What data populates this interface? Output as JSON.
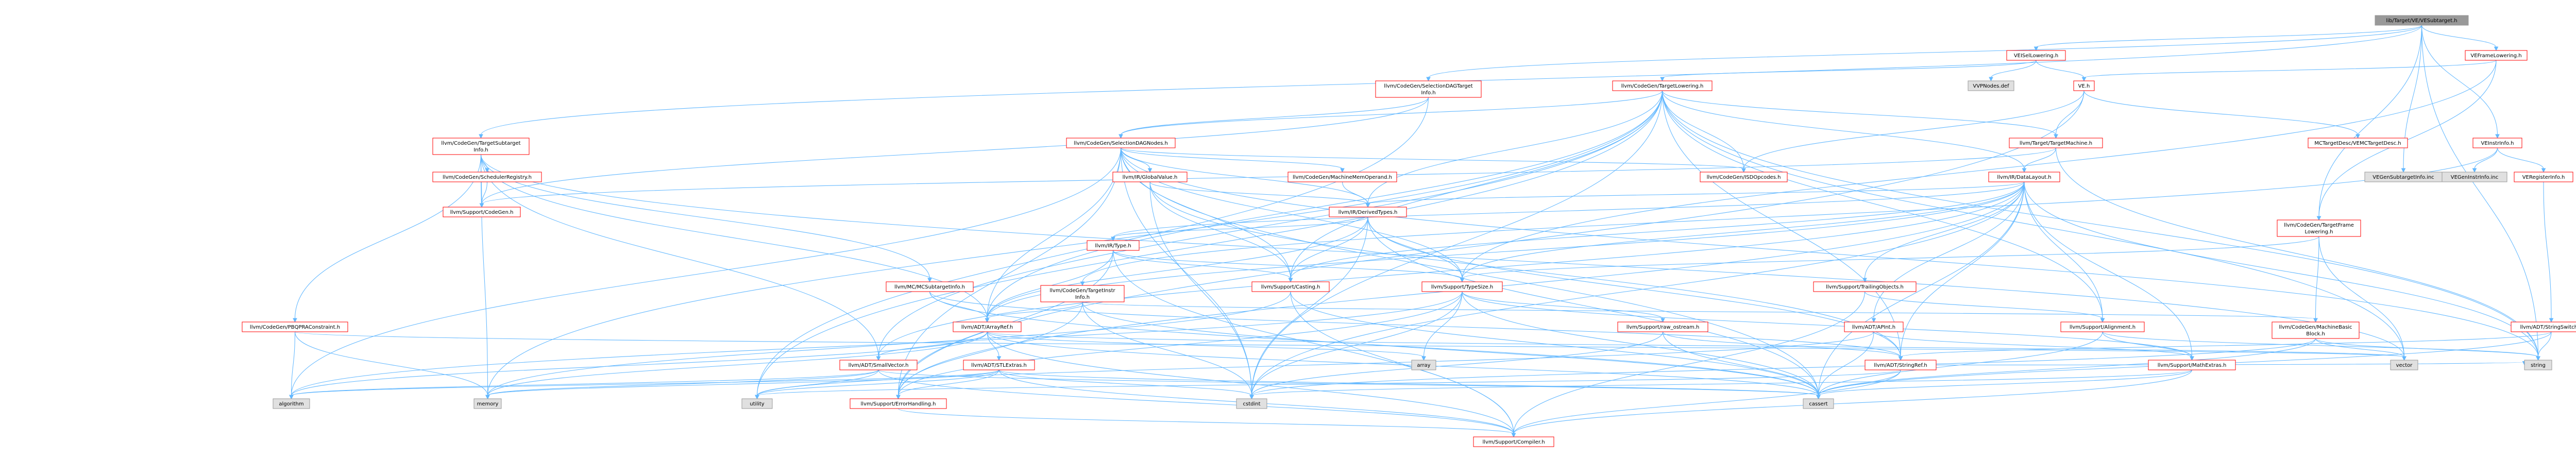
{
  "colors": {
    "edge": "#63b8ff",
    "border": "#ff0000",
    "root_fill": "#999999",
    "system_fill": "#e0e0e0",
    "system_border": "#999999",
    "text": "#000000",
    "system_text": "#000000"
  },
  "nodes": [
    {
      "id": "root",
      "label": "lib/Target/VE/VESubtarget.h",
      "kind": "root"
    },
    {
      "id": "veisellowering",
      "label": "VEISelLowering.h"
    },
    {
      "id": "veframelowering",
      "label": "VEFrameLowering.h"
    },
    {
      "id": "seldagtargetinfo",
      "label": [
        "llvm/CodeGen/SelectionDAGTarget",
        "Info.h"
      ]
    },
    {
      "id": "targetlowering",
      "label": "llvm/CodeGen/TargetLowering.h"
    },
    {
      "id": "vpnodes",
      "label": "VVPNodes.def",
      "kind": "system"
    },
    {
      "id": "ve",
      "label": "VE.h"
    },
    {
      "id": "targetsubtargetinfo",
      "label": [
        "llvm/CodeGen/TargetSubtarget",
        "Info.h"
      ]
    },
    {
      "id": "selectiondagnodes",
      "label": "llvm/CodeGen/SelectionDAGNodes.h"
    },
    {
      "id": "targetmachine",
      "label": "llvm/Target/TargetMachine.h"
    },
    {
      "id": "mctargetdesc",
      "label": "MCTargetDesc/VEMCTargetDesc.h"
    },
    {
      "id": "veinstrinfo",
      "label": "VEInstrInfo.h"
    },
    {
      "id": "schedregistry",
      "label": "llvm/CodeGen/SchedulerRegistry.h"
    },
    {
      "id": "globalvalue",
      "label": "llvm/IR/GlobalValue.h"
    },
    {
      "id": "machinememoperand",
      "label": "llvm/CodeGen/MachineMemOperand.h"
    },
    {
      "id": "isdopcodes",
      "label": "llvm/CodeGen/ISDOpcodes.h"
    },
    {
      "id": "datalayout",
      "label": "llvm/IR/DataLayout.h"
    },
    {
      "id": "vesubtargetinfoinc",
      "label": "VEGenSubtargetInfo.inc",
      "kind": "system"
    },
    {
      "id": "veinstrinfoinc",
      "label": "VEGenInstrInfo.inc",
      "kind": "system"
    },
    {
      "id": "veregisterinfo",
      "label": "VERegisterInfo.h"
    },
    {
      "id": "codegen",
      "label": "llvm/Support/CodeGen.h"
    },
    {
      "id": "derivedtypes",
      "label": "llvm/IR/DerivedTypes.h"
    },
    {
      "id": "targetframelowering",
      "label": [
        "llvm/CodeGen/TargetFrame",
        "Lowering.h"
      ]
    },
    {
      "id": "irtype",
      "label": "llvm/IR/Type.h"
    },
    {
      "id": "mcsubtargetinfo",
      "label": "llvm/MC/MCSubtargetInfo.h"
    },
    {
      "id": "targetinstrinfo",
      "label": [
        "llvm/CodeGen/TargetInstr",
        "Info.h"
      ]
    },
    {
      "id": "casting",
      "label": "llvm/Support/Casting.h"
    },
    {
      "id": "typesize",
      "label": "llvm/Support/TypeSize.h"
    },
    {
      "id": "trailingobjects",
      "label": "llvm/Support/TrailingObjects.h"
    },
    {
      "id": "codegenpbqp",
      "label": "llvm/CodeGen/PBQPRAConstraint.h"
    },
    {
      "id": "arrayref",
      "label": "llvm/ADT/ArrayRef.h"
    },
    {
      "id": "rawostream",
      "label": "llvm/Support/raw_ostream.h"
    },
    {
      "id": "apint",
      "label": "llvm/ADT/APInt.h"
    },
    {
      "id": "alignment",
      "label": "llvm/Support/Alignment.h"
    },
    {
      "id": "machinebasicblock",
      "label": [
        "llvm/CodeGen/MachineBasic",
        "Block.h"
      ]
    },
    {
      "id": "stringswitch",
      "label": "llvm/ADT/StringSwitch.h"
    },
    {
      "id": "smallvector",
      "label": "llvm/ADT/SmallVector.h"
    },
    {
      "id": "stlextras",
      "label": "llvm/ADT/STLExtras.h"
    },
    {
      "id": "array",
      "label": "array",
      "kind": "system"
    },
    {
      "id": "stringref",
      "label": "llvm/ADT/StringRef.h"
    },
    {
      "id": "mathextras",
      "label": "llvm/Support/MathExtras.h"
    },
    {
      "id": "vector",
      "label": "vector",
      "kind": "system"
    },
    {
      "id": "string",
      "label": "string",
      "kind": "system"
    },
    {
      "id": "errorhandling",
      "label": "llvm/Support/ErrorHandling.h"
    },
    {
      "id": "algorithm",
      "label": "algorithm",
      "kind": "system"
    },
    {
      "id": "memory",
      "label": "memory",
      "kind": "system"
    },
    {
      "id": "utility",
      "label": "utility",
      "kind": "system"
    },
    {
      "id": "cstdint",
      "label": "cstdint",
      "kind": "system"
    },
    {
      "id": "cassert",
      "label": "cassert",
      "kind": "system"
    },
    {
      "id": "compiler",
      "label": "llvm/Support/Compiler.h"
    }
  ],
  "edges": [
    [
      "root",
      "veisellowering"
    ],
    [
      "root",
      "veframelowering"
    ],
    [
      "root",
      "seldagtargetinfo"
    ],
    [
      "root",
      "targetsubtargetinfo"
    ],
    [
      "root",
      "veinstrinfo"
    ],
    [
      "root",
      "string"
    ],
    [
      "root",
      "targetframelowering"
    ],
    [
      "root",
      "vesubtargetinfoinc"
    ],
    [
      "veisellowering",
      "ve"
    ],
    [
      "veisellowering",
      "targetlowering"
    ],
    [
      "veisellowering",
      "vpnodes"
    ],
    [
      "veframelowering",
      "ve"
    ],
    [
      "veframelowering",
      "targetframelowering"
    ],
    [
      "veframelowering",
      "typesize"
    ],
    [
      "seldagtargetinfo",
      "selectiondagnodes"
    ],
    [
      "seldagtargetinfo",
      "codegen"
    ],
    [
      "seldagtargetinfo",
      "utility"
    ],
    [
      "targetlowering",
      "selectiondagnodes"
    ],
    [
      "targetlowering",
      "isdopcodes"
    ],
    [
      "targetlowering",
      "datalayout"
    ],
    [
      "targetlowering",
      "derivedtypes"
    ],
    [
      "targetlowering",
      "casting"
    ],
    [
      "targetlowering",
      "alignment"
    ],
    [
      "targetlowering",
      "arrayref"
    ],
    [
      "targetlowering",
      "smallvector"
    ],
    [
      "targetlowering",
      "stringref"
    ],
    [
      "targetlowering",
      "string"
    ],
    [
      "targetlowering",
      "vector"
    ],
    [
      "targetlowering",
      "cstdint"
    ],
    [
      "targetlowering",
      "memory"
    ],
    [
      "targetlowering",
      "utility"
    ],
    [
      "targetlowering",
      "targetmachine"
    ],
    [
      "ve",
      "isdopcodes"
    ],
    [
      "ve",
      "targetmachine"
    ],
    [
      "ve",
      "mctargetdesc"
    ],
    [
      "ve",
      "errorhandling"
    ],
    [
      "targetsubtargetinfo",
      "arrayref"
    ],
    [
      "targetsubtargetinfo",
      "smallvector"
    ],
    [
      "targetsubtargetinfo",
      "codegenpbqp"
    ],
    [
      "targetsubtargetinfo",
      "schedregistry"
    ],
    [
      "targetsubtargetinfo",
      "mcsubtargetinfo"
    ],
    [
      "targetsubtargetinfo",
      "codegen"
    ],
    [
      "targetsubtargetinfo",
      "memory"
    ],
    [
      "targetsubtargetinfo",
      "vector"
    ],
    [
      "selectiondagnodes",
      "globalvalue"
    ],
    [
      "selectiondagnodes",
      "machinememoperand"
    ],
    [
      "selectiondagnodes",
      "isdopcodes"
    ],
    [
      "selectiondagnodes",
      "derivedtypes"
    ],
    [
      "selectiondagnodes",
      "arrayref"
    ],
    [
      "selectiondagnodes",
      "typesize"
    ],
    [
      "selectiondagnodes",
      "casting"
    ],
    [
      "selectiondagnodes",
      "errorhandling"
    ],
    [
      "selectiondagnodes",
      "algorithm"
    ],
    [
      "selectiondagnodes",
      "cassert"
    ],
    [
      "selectiondagnodes",
      "cstdint"
    ],
    [
      "selectiondagnodes",
      "string"
    ],
    [
      "targetmachine",
      "datalayout"
    ],
    [
      "targetmachine",
      "codegen"
    ],
    [
      "targetmachine",
      "string"
    ],
    [
      "veinstrinfo",
      "veregisterinfo"
    ],
    [
      "veinstrinfo",
      "targetinstrinfo"
    ],
    [
      "veinstrinfo",
      "veinstrinfoinc"
    ],
    [
      "globalvalue",
      "derivedtypes"
    ],
    [
      "globalvalue",
      "casting"
    ],
    [
      "globalvalue",
      "stringref"
    ],
    [
      "globalvalue",
      "cstdint"
    ],
    [
      "machinememoperand",
      "derivedtypes"
    ],
    [
      "datalayout",
      "derivedtypes"
    ],
    [
      "datalayout",
      "irtype"
    ],
    [
      "datalayout",
      "arrayref"
    ],
    [
      "datalayout",
      "apint"
    ],
    [
      "datalayout",
      "stringref"
    ],
    [
      "datalayout",
      "alignment"
    ],
    [
      "datalayout",
      "trailingobjects"
    ],
    [
      "datalayout",
      "typesize"
    ],
    [
      "datalayout",
      "casting"
    ],
    [
      "datalayout",
      "mathextras"
    ],
    [
      "datalayout",
      "errorhandling"
    ],
    [
      "datalayout",
      "cassert"
    ],
    [
      "datalayout",
      "cstdint"
    ],
    [
      "datalayout",
      "string"
    ],
    [
      "datalayout",
      "smallvector"
    ],
    [
      "derivedtypes",
      "irtype"
    ],
    [
      "derivedtypes",
      "arrayref"
    ],
    [
      "derivedtypes",
      "stringref"
    ],
    [
      "derivedtypes",
      "casting"
    ],
    [
      "derivedtypes",
      "typesize"
    ],
    [
      "derivedtypes",
      "cassert"
    ],
    [
      "derivedtypes",
      "cstdint"
    ],
    [
      "targetframelowering",
      "machinebasicblock"
    ],
    [
      "targetframelowering",
      "typesize"
    ],
    [
      "targetframelowering",
      "vector"
    ],
    [
      "irtype",
      "arrayref"
    ],
    [
      "irtype",
      "casting"
    ],
    [
      "irtype",
      "typesize"
    ],
    [
      "irtype",
      "compiler"
    ],
    [
      "irtype",
      "errorhandling"
    ],
    [
      "mcsubtargetinfo",
      "arrayref"
    ],
    [
      "mcsubtargetinfo",
      "stringref"
    ],
    [
      "mcsubtargetinfo",
      "cassert"
    ],
    [
      "targetinstrinfo",
      "arrayref"
    ],
    [
      "targetinstrinfo",
      "machinebasicblock"
    ],
    [
      "targetinstrinfo",
      "errorhandling"
    ],
    [
      "targetinstrinfo",
      "cassert"
    ],
    [
      "targetinstrinfo",
      "cstdint"
    ],
    [
      "casting",
      "compiler"
    ],
    [
      "casting",
      "cassert"
    ],
    [
      "casting",
      "memory"
    ],
    [
      "typesize",
      "mathextras"
    ],
    [
      "typesize",
      "rawostream"
    ],
    [
      "typesize",
      "errorhandling"
    ],
    [
      "typesize",
      "algorithm"
    ],
    [
      "typesize",
      "array"
    ],
    [
      "typesize",
      "cassert"
    ],
    [
      "typesize",
      "cstdint"
    ],
    [
      "trailingobjects",
      "alignment"
    ],
    [
      "trailingobjects",
      "compiler"
    ],
    [
      "codegenpbqp",
      "algorithm"
    ],
    [
      "codegenpbqp",
      "memory"
    ],
    [
      "codegenpbqp",
      "vector"
    ],
    [
      "arrayref",
      "smallvector"
    ],
    [
      "arrayref",
      "stlextras"
    ],
    [
      "arrayref",
      "compiler"
    ],
    [
      "arrayref",
      "algorithm"
    ],
    [
      "arrayref",
      "array"
    ],
    [
      "arrayref",
      "cassert"
    ],
    [
      "arrayref",
      "memory"
    ],
    [
      "arrayref",
      "vector"
    ],
    [
      "rawostream",
      "stringref"
    ],
    [
      "rawostream",
      "cassert"
    ],
    [
      "rawostream",
      "cstdint"
    ],
    [
      "apint",
      "mathextras"
    ],
    [
      "apint",
      "cassert"
    ],
    [
      "apint",
      "utility"
    ],
    [
      "alignment",
      "mathextras"
    ],
    [
      "alignment",
      "cassert"
    ],
    [
      "alignment",
      "string"
    ],
    [
      "machinebasicblock",
      "vector"
    ],
    [
      "machinebasicblock",
      "cassert"
    ],
    [
      "machinebasicblock",
      "cstdint"
    ],
    [
      "machinebasicblock",
      "string"
    ],
    [
      "stringswitch",
      "stringref"
    ],
    [
      "stringswitch",
      "cassert"
    ],
    [
      "stringswitch",
      "string"
    ],
    [
      "smallvector",
      "compiler"
    ],
    [
      "smallvector",
      "algorithm"
    ],
    [
      "smallvector",
      "cassert"
    ],
    [
      "smallvector",
      "memory"
    ],
    [
      "smallvector",
      "utility"
    ],
    [
      "stlextras",
      "errorhandling"
    ],
    [
      "stlextras",
      "algorithm"
    ],
    [
      "stlextras",
      "cassert"
    ],
    [
      "stlextras",
      "cstdint"
    ],
    [
      "stlextras",
      "memory"
    ],
    [
      "stlextras",
      "utility"
    ],
    [
      "stlextras",
      "compiler"
    ],
    [
      "stringref",
      "compiler"
    ],
    [
      "stringref",
      "cassert"
    ],
    [
      "stringref",
      "string"
    ],
    [
      "stringref",
      "utility"
    ],
    [
      "mathextras",
      "compiler"
    ],
    [
      "mathextras",
      "cassert"
    ],
    [
      "mathextras",
      "cstdint"
    ],
    [
      "errorhandling",
      "compiler"
    ],
    [
      "schedregistry",
      "codegen"
    ],
    [
      "veregisterinfo",
      "stringswitch"
    ]
  ]
}
